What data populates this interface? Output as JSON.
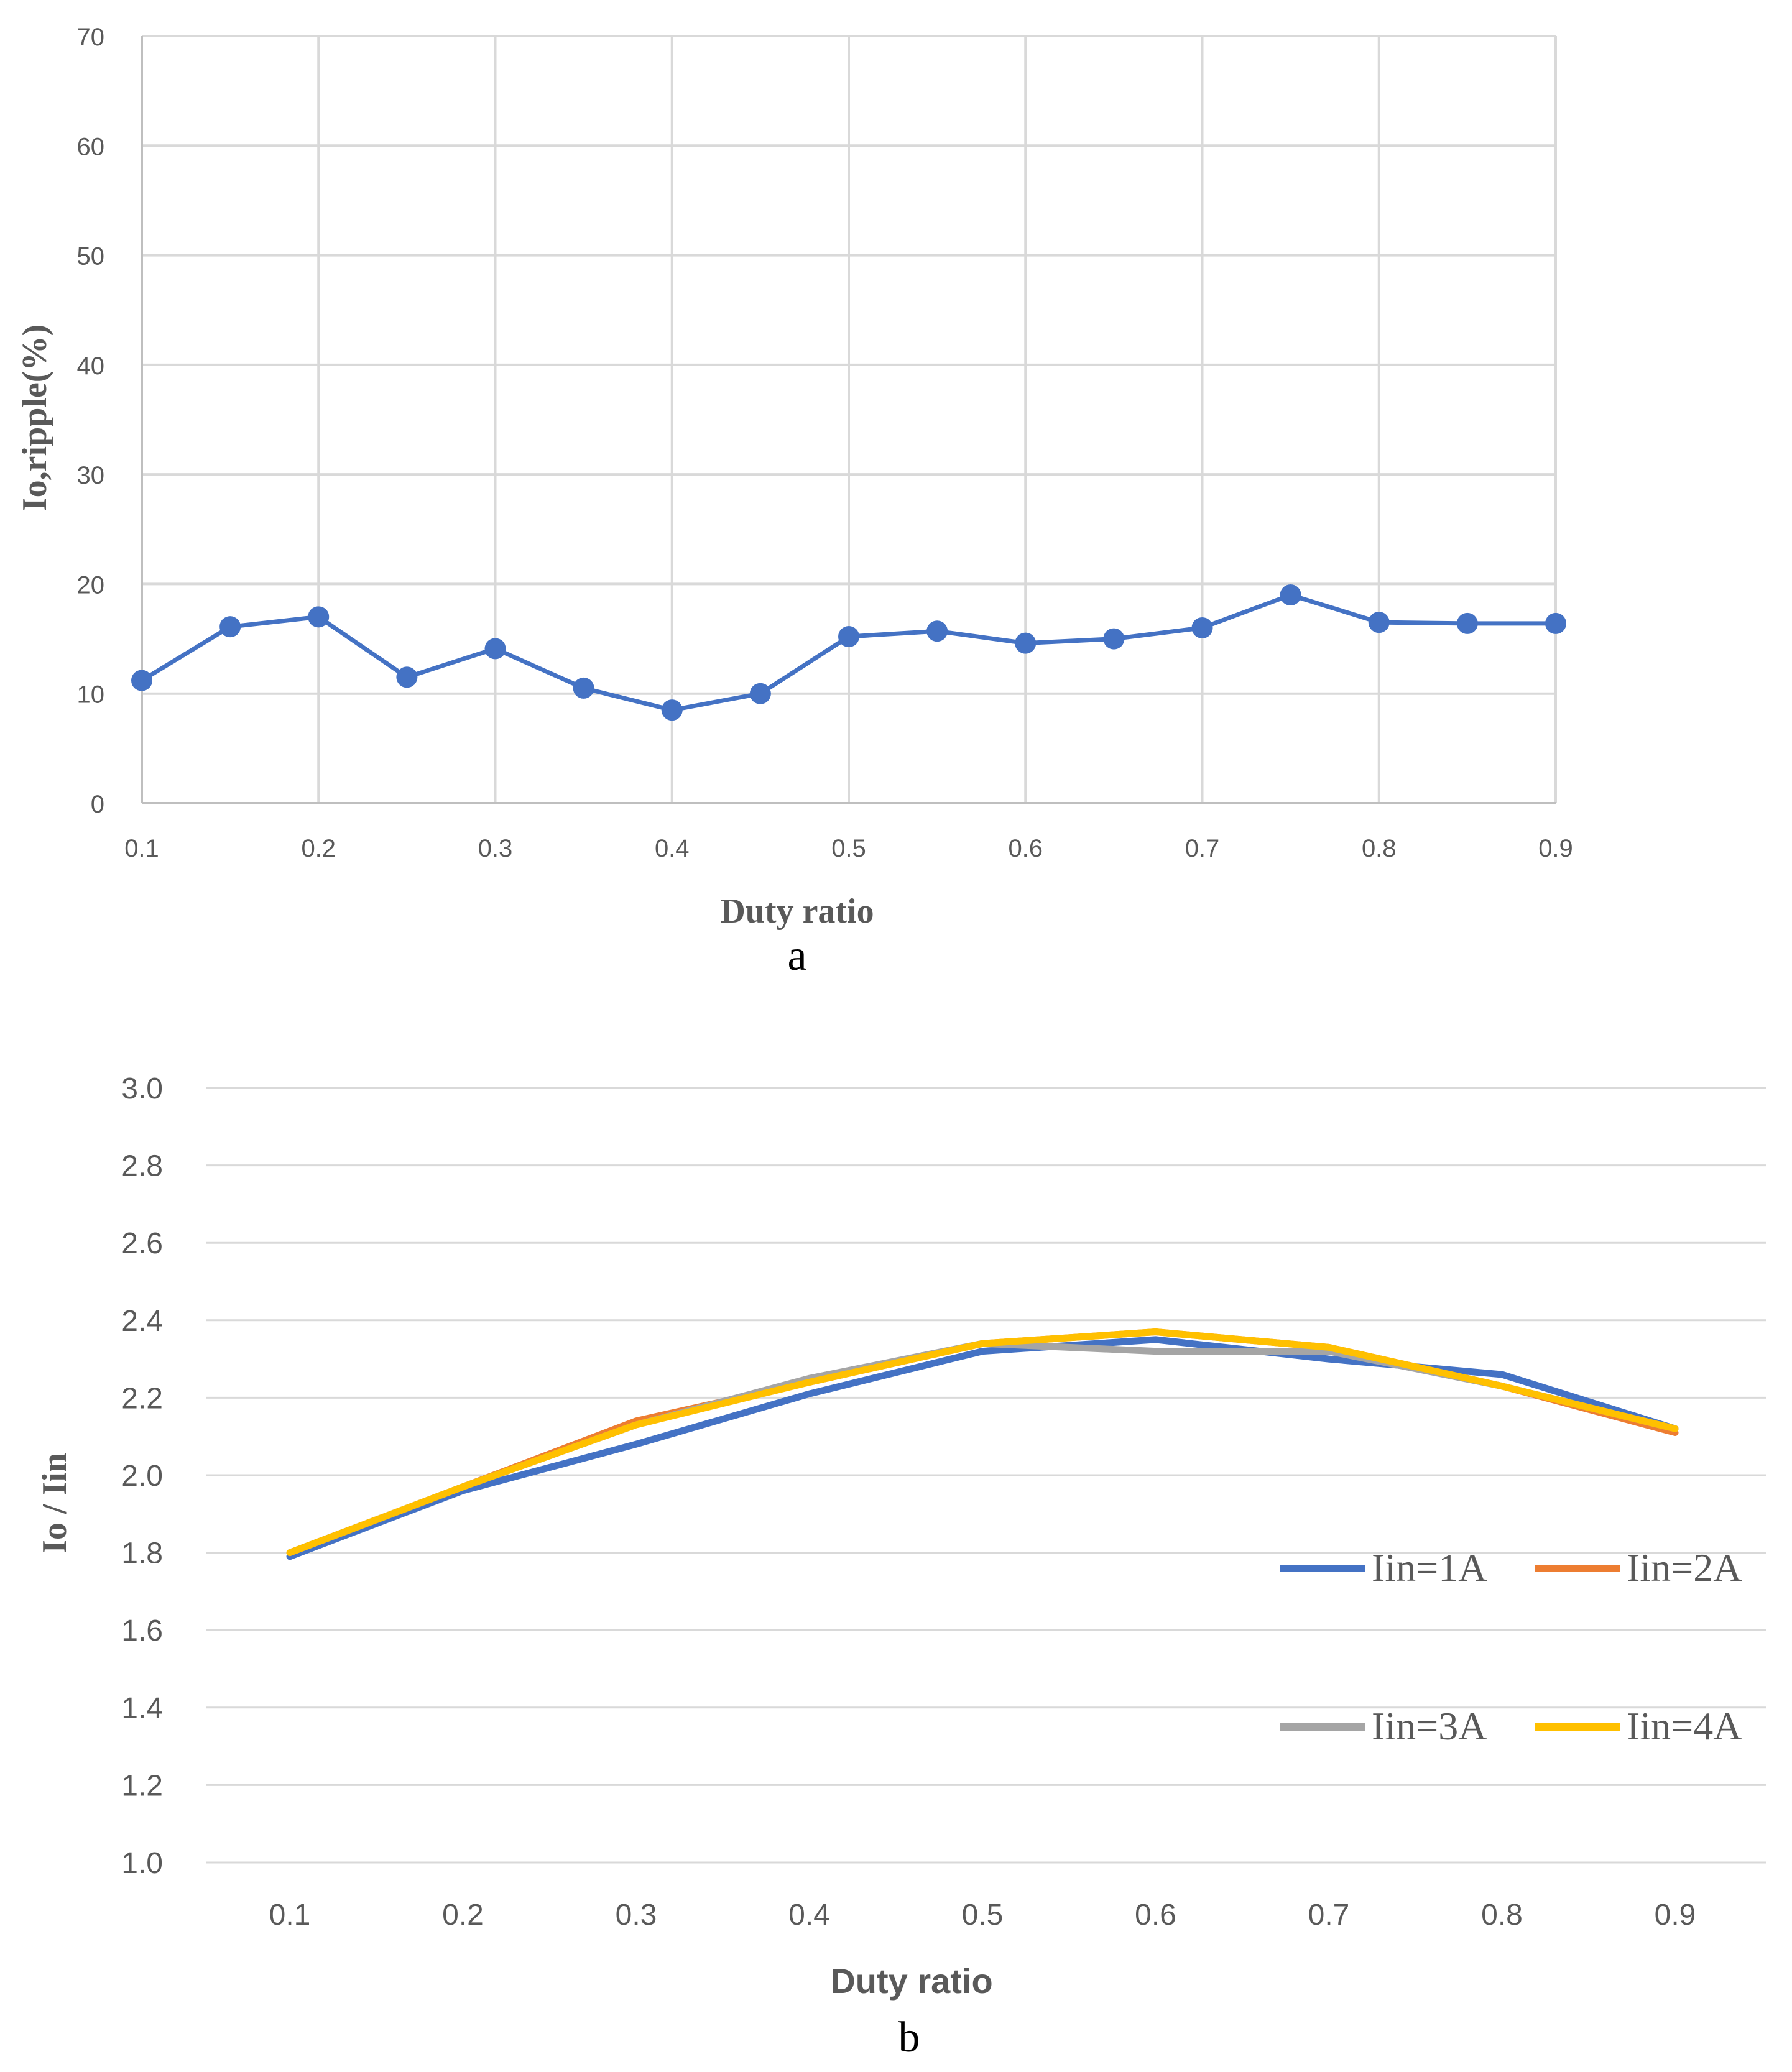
{
  "chart_data": [
    {
      "id": "a",
      "type": "line",
      "caption": "a",
      "title": "",
      "xlabel": "Duty ratio",
      "ylabel": "Io,ripple(%)",
      "xlim": [
        0.1,
        0.9
      ],
      "ylim": [
        0,
        70
      ],
      "x_ticks": [
        "0.1",
        "0.2",
        "0.3",
        "0.4",
        "0.5",
        "0.6",
        "0.7",
        "0.8",
        "0.9"
      ],
      "y_ticks": [
        "0",
        "10",
        "20",
        "30",
        "40",
        "50",
        "60",
        "70"
      ],
      "grid": true,
      "markers": true,
      "color": "#4472C4",
      "x": [
        0.1,
        0.15,
        0.2,
        0.25,
        0.3,
        0.35,
        0.4,
        0.45,
        0.5,
        0.55,
        0.6,
        0.65,
        0.7,
        0.75,
        0.8,
        0.85,
        0.9
      ],
      "values": [
        11.2,
        16.1,
        17.0,
        11.5,
        14.1,
        10.5,
        8.5,
        10.0,
        15.2,
        15.7,
        14.6,
        15.0,
        16.0,
        19.0,
        16.5,
        16.4,
        16.4
      ]
    },
    {
      "id": "b",
      "type": "line",
      "caption": "b",
      "title": "",
      "xlabel": "Duty ratio",
      "ylabel": "Io / Iin",
      "categories": [
        "0.1",
        "0.2",
        "0.3",
        "0.4",
        "0.5",
        "0.6",
        "0.7",
        "0.8",
        "0.9"
      ],
      "y_ticks": [
        "1.0",
        "1.2",
        "1.4",
        "1.6",
        "1.8",
        "2.0",
        "2.2",
        "2.4",
        "2.6",
        "2.8",
        "3.0"
      ],
      "ylim": [
        1.0,
        3.0
      ],
      "grid": true,
      "legend_position": "right",
      "series": [
        {
          "name": "Iin=1A",
          "color": "#4472C4",
          "values": [
            1.79,
            1.96,
            2.08,
            2.21,
            2.32,
            2.35,
            2.3,
            2.26,
            2.12
          ]
        },
        {
          "name": "Iin=2A",
          "color": "#ED7D31",
          "values": [
            1.8,
            1.97,
            2.14,
            2.24,
            2.34,
            2.37,
            2.33,
            2.23,
            2.11
          ]
        },
        {
          "name": "Iin=3A",
          "color": "#A5A5A5",
          "values": [
            1.8,
            1.97,
            2.13,
            2.25,
            2.34,
            2.32,
            2.32,
            2.23,
            2.12
          ]
        },
        {
          "name": "Iin=4A",
          "color": "#FFC000",
          "values": [
            1.8,
            1.97,
            2.13,
            2.24,
            2.34,
            2.37,
            2.33,
            2.23,
            2.12
          ]
        }
      ]
    }
  ]
}
